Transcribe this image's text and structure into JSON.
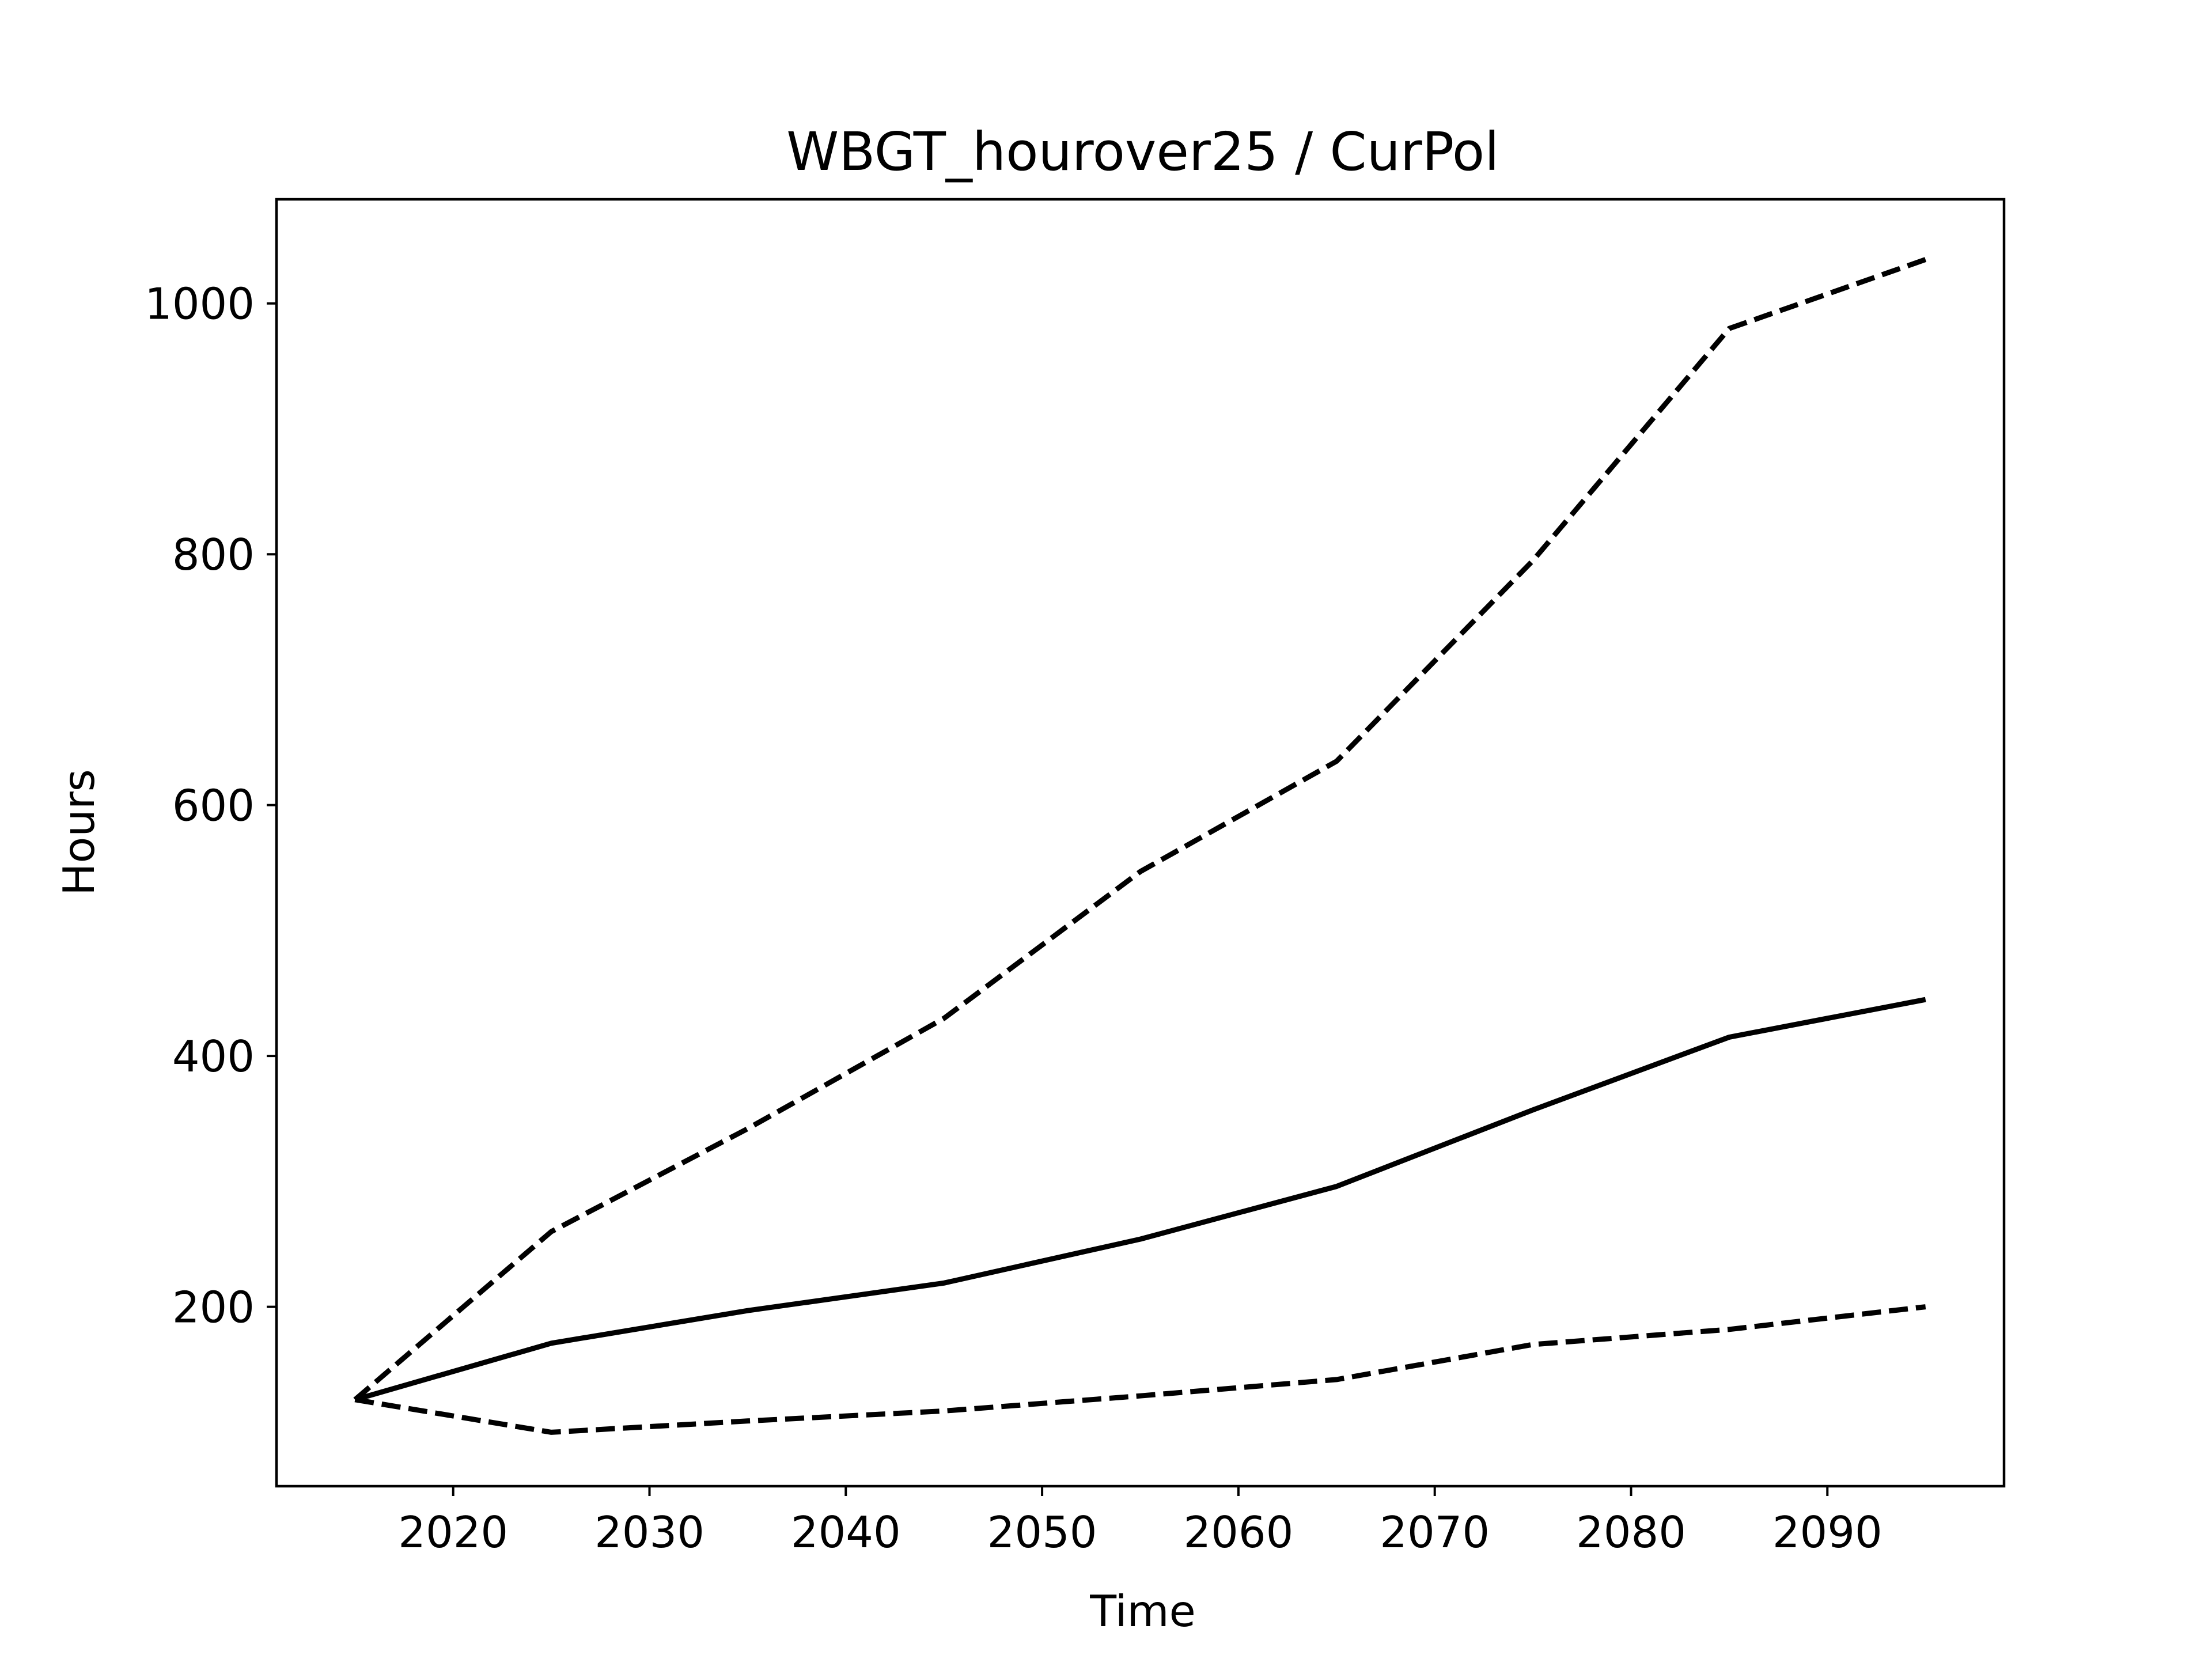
{
  "chart_data": {
    "type": "line",
    "title": "WBGT_hourover25 / CurPol",
    "xlabel": "Time",
    "ylabel": "Hours",
    "xlim": [
      2011,
      2099
    ],
    "ylim": [
      57,
      1083
    ],
    "xticks": [
      2020,
      2030,
      2040,
      2050,
      2060,
      2070,
      2080,
      2090
    ],
    "yticks": [
      200,
      400,
      600,
      800,
      1000
    ],
    "grid": false,
    "legend": "none",
    "x": [
      2015,
      2025,
      2035,
      2045,
      2055,
      2065,
      2075,
      2085,
      2095
    ],
    "series": [
      {
        "style": "dashed",
        "color": "#000000",
        "values": [
          126,
          260,
          342,
          430,
          547,
          635,
          795,
          980,
          1035
        ]
      },
      {
        "style": "solid",
        "color": "#000000",
        "values": [
          126,
          171,
          197,
          219,
          254,
          296,
          357,
          415,
          445
        ]
      },
      {
        "style": "dashed",
        "color": "#000000",
        "values": [
          126,
          100,
          109,
          117,
          129,
          142,
          170,
          182,
          200
        ]
      }
    ]
  }
}
